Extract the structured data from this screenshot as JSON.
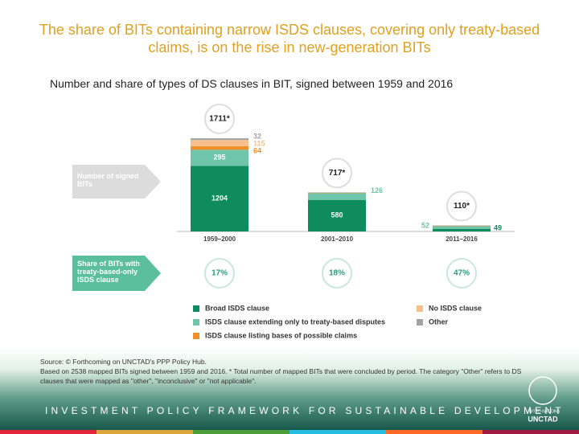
{
  "chart_data": {
    "type": "bar",
    "title": "The share of BITs containing narrow ISDS clauses, covering only treaty-based claims, is on the rise in new-generation BITs",
    "subtitle": "Number and share of types of DS clauses in BIT, signed between 1959 and 2016",
    "stacked": true,
    "categories": [
      "1959–2000",
      "2001–2010",
      "2011–2016"
    ],
    "series": [
      {
        "name": "Broad ISDS clause",
        "color": "#0f8c5e",
        "values": [
          1204,
          580,
          49
        ]
      },
      {
        "name": "ISDS clause extending only to treaty-based disputes",
        "color": "#6fc5a9",
        "values": [
          295,
          126,
          52
        ]
      },
      {
        "name": "ISDS clause listing bases of possible claims",
        "color": "#ef8f2a",
        "values": [
          64,
          4,
          2
        ]
      },
      {
        "name": "No ISDS clause",
        "color": "#f6c18c",
        "values": [
          115,
          5,
          5
        ]
      },
      {
        "name": "Other",
        "color": "#a3a3a3",
        "values": [
          32,
          2,
          2
        ]
      }
    ],
    "totals": [
      1711,
      717,
      110
    ],
    "total_labels": [
      "1711*",
      "717*",
      "110*"
    ],
    "totals_label": "Number of signed BITs",
    "shares": [
      17,
      18,
      47
    ],
    "share_labels": [
      "17%",
      "18%",
      "47%"
    ],
    "shares_label": "Share of BITs with treaty-based-only ISDS clause",
    "source": "Source: © Forthcoming on UNCTAD's PPP Policy Hub.",
    "note": "Based on 2538 mapped BITs signed between 1959 and 2016. * Total number of mapped BITs that were concluded by period. The category \"Other\" refers to DS clauses that were mapped as \"other\", \"inconclusive\" or \"not applicable\".",
    "banner": "INVESTMENT POLICY FRAMEWORK FOR SUSTAINABLE DEVELOPMENT",
    "org": "UNCTAD",
    "org_small": "UNITED NATIONS"
  }
}
